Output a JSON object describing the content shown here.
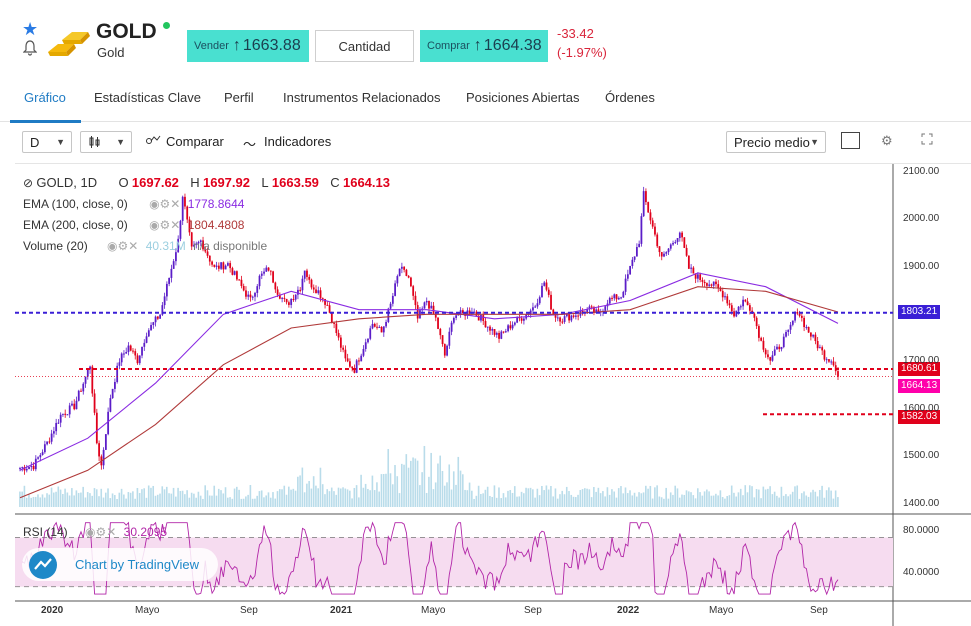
{
  "instrument": {
    "symbol": "GOLD",
    "name": "Gold",
    "sell_label": "Vender",
    "sell_price": "1663.88",
    "quantity_label": "Cantidad",
    "buy_label": "Comprar",
    "buy_price": "1664.38",
    "change_abs": "-33.42",
    "change_pct": "(-1.97%)"
  },
  "tabs": [
    {
      "label": "Gráfico"
    },
    {
      "label": "Estadísticas Clave"
    },
    {
      "label": "Perfil"
    },
    {
      "label": "Instrumentos Relacionados"
    },
    {
      "label": "Posiciones Abiertas"
    },
    {
      "label": "Órdenes"
    }
  ],
  "toolbar": {
    "interval": "D",
    "compare_label": "Comparar",
    "indicators_label": "Indicadores",
    "price_type": "Precio medio"
  },
  "legend": {
    "title": "GOLD, 1D",
    "o_key": "O",
    "o_val": "1697.62",
    "h_key": "H",
    "h_val": "1697.92",
    "l_key": "L",
    "l_val": "1663.59",
    "c_key": "C",
    "c_val": "1664.13",
    "ema100_label": "EMA (100, close, 0)",
    "ema100_val": "1778.8644",
    "ema200_label": "EMA (200, close, 0)",
    "ema200_val": "1804.4808",
    "volume_label": "Volume (20)",
    "volume_val": "40.31M",
    "volume_na": "n/a disponible",
    "rsi_label": "RSI (14)",
    "rsi_val": "30.2095"
  },
  "price_tags": {
    "level1": "1803.21",
    "level2": "1680.61",
    "last": "1664.13",
    "level3": "1582.03"
  },
  "branding": {
    "tradingview": "Chart by TradingView"
  },
  "colors": {
    "accent": "#1f7bc4",
    "buy_sell_bg": "#49e0d0",
    "down": "#e0001b",
    "ema100": "#8a2be2",
    "ema200": "#b03a3a",
    "level_blue": "#3a1fd6",
    "rsi": "#b226a8"
  },
  "chart_data": {
    "type": "candlestick",
    "y_axis_ticks": [
      "2100.00",
      "2000.00",
      "1900.00",
      "1700.00",
      "1600.00",
      "1500.00",
      "1400.00"
    ],
    "rsi_ticks": [
      "80.0000",
      "40.0000"
    ],
    "x_ticks": [
      "2020",
      "Mayo",
      "Sep",
      "2021",
      "Mayo",
      "Sep",
      "2022",
      "Mayo",
      "Sep"
    ],
    "ylim": [
      1380,
      2110
    ],
    "levels": [
      1803.21,
      1680.61,
      1582.03
    ],
    "last_close": 1664.13,
    "keypoints": [
      [
        0,
        1465
      ],
      [
        6,
        1470
      ],
      [
        12,
        1520
      ],
      [
        18,
        1580
      ],
      [
        24,
        1600
      ],
      [
        28,
        1650
      ],
      [
        31,
        1690
      ],
      [
        34,
        1520
      ],
      [
        36,
        1470
      ],
      [
        40,
        1620
      ],
      [
        44,
        1700
      ],
      [
        48,
        1730
      ],
      [
        52,
        1700
      ],
      [
        56,
        1760
      ],
      [
        62,
        1800
      ],
      [
        66,
        1880
      ],
      [
        70,
        1960
      ],
      [
        72,
        2060
      ],
      [
        76,
        1940
      ],
      [
        80,
        1960
      ],
      [
        86,
        1900
      ],
      [
        92,
        1910
      ],
      [
        98,
        1860
      ],
      [
        102,
        1830
      ],
      [
        106,
        1880
      ],
      [
        110,
        1900
      ],
      [
        114,
        1850
      ],
      [
        118,
        1820
      ],
      [
        124,
        1860
      ],
      [
        126,
        1900
      ],
      [
        128,
        1870
      ],
      [
        132,
        1850
      ],
      [
        136,
        1820
      ],
      [
        140,
        1760
      ],
      [
        144,
        1700
      ],
      [
        148,
        1680
      ],
      [
        152,
        1730
      ],
      [
        156,
        1780
      ],
      [
        160,
        1760
      ],
      [
        164,
        1820
      ],
      [
        168,
        1900
      ],
      [
        172,
        1880
      ],
      [
        176,
        1790
      ],
      [
        180,
        1830
      ],
      [
        184,
        1790
      ],
      [
        188,
        1710
      ],
      [
        192,
        1800
      ],
      [
        196,
        1800
      ],
      [
        200,
        1810
      ],
      [
        206,
        1780
      ],
      [
        212,
        1750
      ],
      [
        218,
        1780
      ],
      [
        224,
        1800
      ],
      [
        228,
        1820
      ],
      [
        232,
        1870
      ],
      [
        236,
        1800
      ],
      [
        240,
        1790
      ],
      [
        246,
        1800
      ],
      [
        252,
        1810
      ],
      [
        256,
        1800
      ],
      [
        260,
        1830
      ],
      [
        266,
        1840
      ],
      [
        270,
        1900
      ],
      [
        274,
        1960
      ],
      [
        276,
        2060
      ],
      [
        280,
        1990
      ],
      [
        284,
        1920
      ],
      [
        288,
        1950
      ],
      [
        292,
        1980
      ],
      [
        296,
        1900
      ],
      [
        300,
        1880
      ],
      [
        304,
        1870
      ],
      [
        308,
        1860
      ],
      [
        312,
        1840
      ],
      [
        316,
        1800
      ],
      [
        320,
        1830
      ],
      [
        324,
        1810
      ],
      [
        328,
        1740
      ],
      [
        332,
        1700
      ],
      [
        336,
        1730
      ],
      [
        340,
        1760
      ],
      [
        344,
        1810
      ],
      [
        348,
        1770
      ],
      [
        352,
        1740
      ],
      [
        356,
        1710
      ],
      [
        360,
        1697
      ],
      [
        362,
        1664
      ]
    ],
    "ema100_points": [
      [
        0,
        1460
      ],
      [
        30,
        1530
      ],
      [
        60,
        1650
      ],
      [
        90,
        1800
      ],
      [
        120,
        1850
      ],
      [
        150,
        1810
      ],
      [
        180,
        1810
      ],
      [
        210,
        1790
      ],
      [
        240,
        1800
      ],
      [
        270,
        1830
      ],
      [
        300,
        1890
      ],
      [
        330,
        1860
      ],
      [
        362,
        1780
      ]
    ],
    "ema200_points": [
      [
        0,
        1400
      ],
      [
        30,
        1460
      ],
      [
        60,
        1560
      ],
      [
        90,
        1690
      ],
      [
        120,
        1770
      ],
      [
        150,
        1790
      ],
      [
        180,
        1800
      ],
      [
        210,
        1800
      ],
      [
        240,
        1800
      ],
      [
        270,
        1810
      ],
      [
        300,
        1860
      ],
      [
        330,
        1850
      ],
      [
        362,
        1805
      ]
    ],
    "rsi_bounds": [
      30,
      70
    ]
  }
}
